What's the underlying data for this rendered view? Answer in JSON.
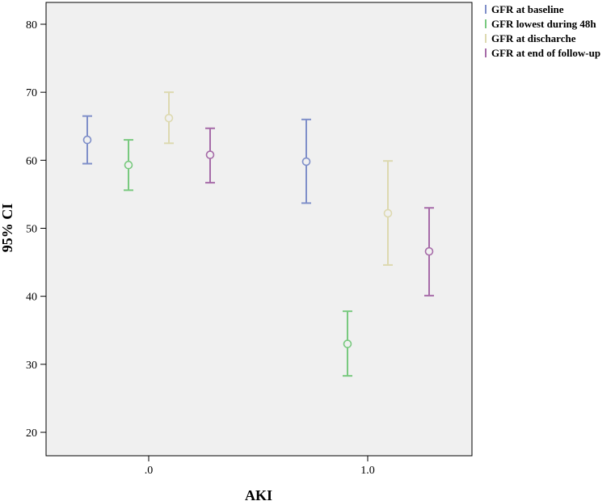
{
  "chart_data": {
    "type": "errorbar",
    "xlabel": "AKI",
    "ylabel": "95% CI",
    "ylim": [
      16,
      84
    ],
    "yticks": [
      20,
      30,
      40,
      50,
      60,
      70,
      80
    ],
    "categories": [
      ".0",
      "1.0"
    ],
    "grid": false,
    "legend_position": "right",
    "series": [
      {
        "name": "GFR at baseline",
        "color": "#7f8fc9",
        "points": [
          {
            "category": ".0",
            "mean": 63.0,
            "lower": 59.5,
            "upper": 66.5
          },
          {
            "category": "1.0",
            "mean": 59.8,
            "lower": 53.7,
            "upper": 66.0
          }
        ]
      },
      {
        "name": "GFR lowest during 48h",
        "color": "#79c97f",
        "points": [
          {
            "category": ".0",
            "mean": 59.3,
            "lower": 55.6,
            "upper": 63.0
          },
          {
            "category": "1.0",
            "mean": 33.0,
            "lower": 28.3,
            "upper": 37.8
          }
        ]
      },
      {
        "name": "GFR at discharche",
        "color": "#ddd9b0",
        "points": [
          {
            "category": ".0",
            "mean": 66.2,
            "lower": 62.5,
            "upper": 70.0
          },
          {
            "category": "1.0",
            "mean": 52.2,
            "lower": 44.6,
            "upper": 59.9
          }
        ]
      },
      {
        "name": "GFR at end of follow-up",
        "color": "#a66ba8",
        "points": [
          {
            "category": ".0",
            "mean": 60.8,
            "lower": 56.7,
            "upper": 64.7
          },
          {
            "category": "1.0",
            "mean": 46.6,
            "lower": 40.1,
            "upper": 53.0
          }
        ]
      }
    ]
  }
}
